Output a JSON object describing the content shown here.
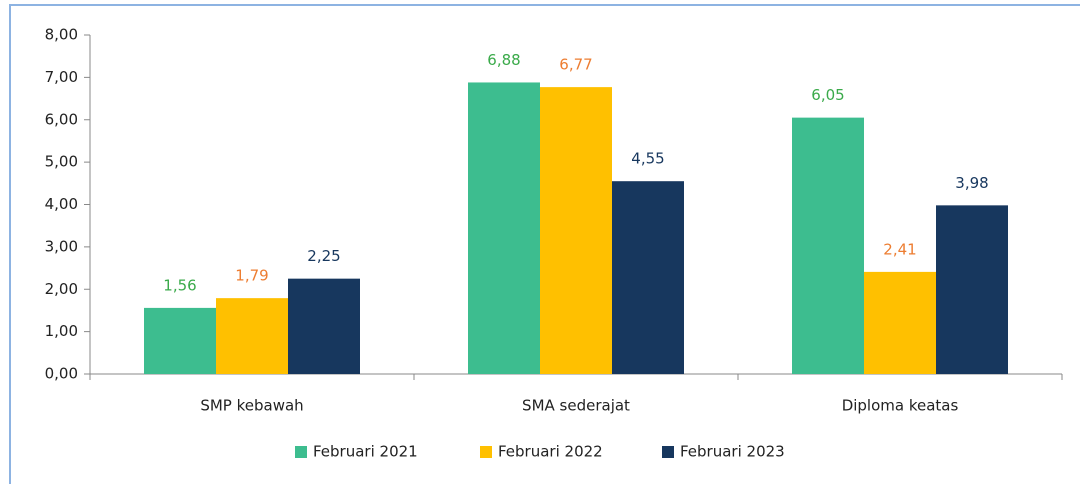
{
  "chart_data": {
    "type": "bar",
    "categories": [
      "SMP kebawah",
      "SMA sederajat",
      "Diploma keatas"
    ],
    "series": [
      {
        "name": "Februari 2021",
        "color": "#3dbd8f",
        "label_color": "#3aaa4a",
        "values": [
          1.56,
          6.88,
          6.05
        ],
        "value_labels": [
          "1,56",
          "6,88",
          "6,05"
        ]
      },
      {
        "name": "Februari 2022",
        "color": "#ffc000",
        "label_color": "#ed7d31",
        "values": [
          1.79,
          6.77,
          2.41
        ],
        "value_labels": [
          "1,79",
          "6,77",
          "2,41"
        ]
      },
      {
        "name": "Februari 2023",
        "color": "#17375e",
        "label_color": "#17375e",
        "values": [
          2.25,
          4.55,
          3.98
        ],
        "value_labels": [
          "2,25",
          "4,55",
          "3,98"
        ]
      }
    ],
    "ylim": [
      0,
      8
    ],
    "yticks": [
      {
        "value": 0,
        "label": "0,00"
      },
      {
        "value": 1,
        "label": "1,00"
      },
      {
        "value": 2,
        "label": "2,00"
      },
      {
        "value": 3,
        "label": "3,00"
      },
      {
        "value": 4,
        "label": "4,00"
      },
      {
        "value": 5,
        "label": "5,00"
      },
      {
        "value": 6,
        "label": "6,00"
      },
      {
        "value": 7,
        "label": "7,00"
      },
      {
        "value": 8,
        "label": "8,00"
      }
    ],
    "legend": "bottom",
    "grid": false
  }
}
